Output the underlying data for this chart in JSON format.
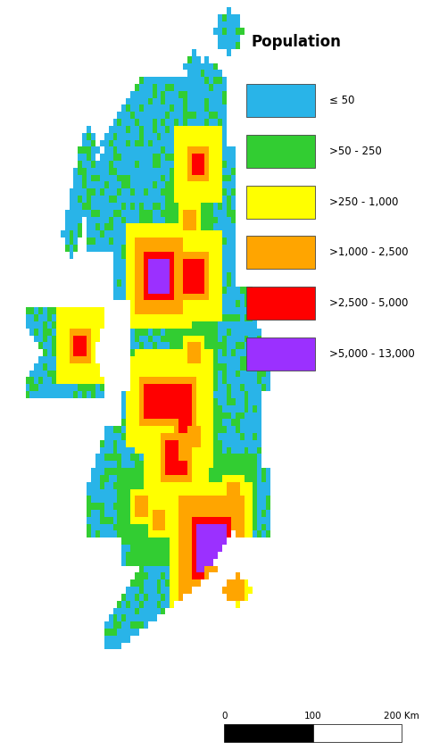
{
  "title": "Population",
  "legend_colors": [
    "#29B4E8",
    "#32CD32",
    "#FFFF00",
    "#FFA500",
    "#FF0000",
    "#9B30FF"
  ],
  "legend_labels": [
    "≤ 50",
    ">50 - 250",
    ">250 - 1,000",
    ">1,000 - 2,500",
    ">2,500 - 5,000",
    ">5,000 - 13,000"
  ],
  "scale_bar_labels": [
    "0",
    "100",
    "200 Km"
  ],
  "background_color": "#FFFFFF"
}
